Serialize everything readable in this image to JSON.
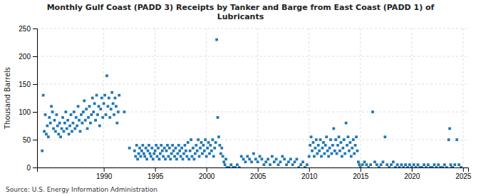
{
  "chart_data": {
    "type": "scatter",
    "title": "Monthly Gulf Coast (PADD 3) Receipts by Tanker and Barge from East Coast (PADD 1) of\nLubricants",
    "ylabel": "Thousand Barrels",
    "annotations": [
      "Source: U.S. Energy Information Administration"
    ],
    "marker": "square",
    "grid": true,
    "xlim": [
      1983.5,
      2025.5
    ],
    "ylim": [
      0,
      250
    ],
    "xticks": [
      1990,
      1995,
      2000,
      2005,
      2010,
      2015,
      2020,
      2025
    ],
    "yticks": [
      0,
      50,
      100,
      150,
      200,
      250
    ],
    "x": [
      1984.0,
      1984.1,
      1984.2,
      1984.3,
      1984.4,
      1984.5,
      1984.6,
      1984.7,
      1984.8,
      1984.9,
      1985.0,
      1985.1,
      1985.2,
      1985.3,
      1985.4,
      1985.5,
      1985.6,
      1985.7,
      1985.8,
      1985.9,
      1986.0,
      1986.1,
      1986.2,
      1986.3,
      1986.4,
      1986.5,
      1986.6,
      1986.7,
      1986.8,
      1986.9,
      1987.0,
      1987.1,
      1987.2,
      1987.3,
      1987.4,
      1987.5,
      1987.6,
      1987.7,
      1987.8,
      1987.9,
      1988.0,
      1988.1,
      1988.2,
      1988.3,
      1988.4,
      1988.5,
      1988.6,
      1988.7,
      1988.8,
      1988.9,
      1989.0,
      1989.1,
      1989.2,
      1989.3,
      1989.4,
      1989.5,
      1989.6,
      1989.7,
      1989.8,
      1989.9,
      1990.0,
      1990.1,
      1990.2,
      1990.3,
      1990.4,
      1990.5,
      1990.6,
      1990.7,
      1990.8,
      1990.9,
      1991.0,
      1991.1,
      1991.2,
      1991.3,
      1991.4,
      1991.5,
      1992.0,
      1992.5,
      1993.0,
      1993.1,
      1993.2,
      1993.3,
      1993.4,
      1993.5,
      1993.6,
      1993.7,
      1993.8,
      1993.9,
      1994.0,
      1994.1,
      1994.2,
      1994.3,
      1994.4,
      1994.5,
      1994.6,
      1994.7,
      1994.8,
      1994.9,
      1995.0,
      1995.1,
      1995.2,
      1995.3,
      1995.4,
      1995.5,
      1995.6,
      1995.7,
      1995.8,
      1995.9,
      1996.0,
      1996.1,
      1996.2,
      1996.3,
      1996.4,
      1996.5,
      1996.6,
      1996.7,
      1996.8,
      1996.9,
      1997.0,
      1997.1,
      1997.2,
      1997.3,
      1997.4,
      1997.5,
      1997.6,
      1997.7,
      1997.8,
      1997.9,
      1998.0,
      1998.1,
      1998.2,
      1998.3,
      1998.4,
      1998.5,
      1998.6,
      1998.7,
      1998.8,
      1998.9,
      1999.0,
      1999.1,
      1999.2,
      1999.3,
      1999.4,
      1999.5,
      1999.6,
      1999.7,
      1999.8,
      1999.9,
      2000.0,
      2000.1,
      2000.2,
      2000.3,
      2000.4,
      2000.5,
      2000.6,
      2000.7,
      2000.8,
      2000.9,
      2001.0,
      2001.1,
      2001.2,
      2001.3,
      2001.4,
      2001.5,
      2001.6,
      2001.7,
      2001.8,
      2001.9,
      2002.0,
      2002.2,
      2002.4,
      2002.6,
      2002.8,
      2003.0,
      2003.2,
      2003.4,
      2003.6,
      2003.8,
      2004.0,
      2004.2,
      2004.4,
      2004.6,
      2004.8,
      2005.0,
      2005.2,
      2005.4,
      2005.6,
      2005.8,
      2006.0,
      2006.2,
      2006.4,
      2006.6,
      2006.8,
      2007.0,
      2007.2,
      2007.4,
      2007.6,
      2007.8,
      2008.0,
      2008.2,
      2008.4,
      2008.6,
      2008.8,
      2009.0,
      2009.2,
      2009.4,
      2009.6,
      2009.8,
      2010.0,
      2010.1,
      2010.2,
      2010.3,
      2010.4,
      2010.5,
      2010.6,
      2010.7,
      2010.8,
      2010.9,
      2011.0,
      2011.1,
      2011.2,
      2011.3,
      2011.4,
      2011.5,
      2011.6,
      2011.7,
      2011.8,
      2011.9,
      2012.0,
      2012.1,
      2012.2,
      2012.3,
      2012.4,
      2012.5,
      2012.6,
      2012.7,
      2012.8,
      2012.9,
      2013.0,
      2013.1,
      2013.2,
      2013.3,
      2013.4,
      2013.5,
      2013.6,
      2013.7,
      2013.8,
      2013.9,
      2014.0,
      2014.1,
      2014.2,
      2014.3,
      2014.4,
      2014.5,
      2014.6,
      2014.7,
      2014.8,
      2014.9,
      2015.0,
      2015.2,
      2015.4,
      2015.6,
      2015.8,
      2016.0,
      2016.2,
      2016.4,
      2016.6,
      2016.8,
      2017.0,
      2017.2,
      2017.4,
      2017.6,
      2017.8,
      2018.0,
      2018.2,
      2018.4,
      2018.6,
      2018.8,
      2019.0,
      2019.2,
      2019.4,
      2019.6,
      2019.8,
      2020.0,
      2020.2,
      2020.4,
      2020.6,
      2020.8,
      2021.0,
      2021.2,
      2021.4,
      2021.6,
      2021.8,
      2022.0,
      2022.2,
      2022.4,
      2022.6,
      2022.8,
      2023.0,
      2023.2,
      2023.4,
      2023.6,
      2023.7,
      2023.8,
      2023.9,
      2024.0,
      2024.2,
      2024.4,
      2024.6,
      2024.8
    ],
    "values": [
      30,
      130,
      65,
      95,
      60,
      75,
      55,
      90,
      80,
      110,
      100,
      70,
      85,
      65,
      95,
      75,
      60,
      80,
      55,
      70,
      90,
      65,
      80,
      100,
      70,
      85,
      60,
      75,
      95,
      65,
      80,
      100,
      70,
      90,
      75,
      110,
      85,
      65,
      95,
      80,
      100,
      120,
      85,
      105,
      70,
      90,
      110,
      80,
      95,
      125,
      100,
      115,
      85,
      130,
      95,
      110,
      75,
      105,
      125,
      90,
      115,
      130,
      95,
      165,
      110,
      125,
      90,
      105,
      135,
      115,
      95,
      125,
      110,
      80,
      100,
      130,
      100,
      35,
      30,
      20,
      40,
      15,
      25,
      35,
      20,
      30,
      40,
      25,
      20,
      35,
      15,
      30,
      40,
      25,
      20,
      35,
      15,
      25,
      30,
      40,
      20,
      35,
      15,
      25,
      40,
      30,
      20,
      35,
      15,
      30,
      40,
      20,
      35,
      15,
      25,
      40,
      30,
      20,
      35,
      15,
      25,
      40,
      30,
      20,
      35,
      15,
      25,
      40,
      30,
      20,
      45,
      15,
      30,
      50,
      20,
      35,
      15,
      25,
      40,
      30,
      50,
      20,
      35,
      45,
      25,
      40,
      30,
      50,
      20,
      35,
      45,
      25,
      40,
      30,
      50,
      20,
      35,
      45,
      230,
      90,
      55,
      40,
      25,
      35,
      20,
      10,
      5,
      15,
      0,
      0,
      5,
      0,
      0,
      5,
      0,
      20,
      15,
      10,
      20,
      15,
      10,
      25,
      15,
      10,
      20,
      15,
      5,
      10,
      15,
      5,
      20,
      10,
      15,
      5,
      10,
      20,
      15,
      5,
      10,
      15,
      5,
      10,
      15,
      0,
      5,
      10,
      0,
      5,
      20,
      40,
      55,
      30,
      45,
      20,
      35,
      50,
      25,
      40,
      30,
      50,
      20,
      35,
      45,
      25,
      40,
      55,
      30,
      20,
      35,
      50,
      25,
      40,
      70,
      30,
      50,
      25,
      40,
      55,
      30,
      45,
      20,
      35,
      50,
      25,
      80,
      40,
      55,
      30,
      45,
      20,
      35,
      50,
      25,
      40,
      55,
      30,
      10,
      5,
      0,
      5,
      10,
      5,
      0,
      5,
      100,
      10,
      5,
      0,
      5,
      10,
      55,
      5,
      0,
      5,
      10,
      0,
      5,
      0,
      5,
      0,
      5,
      0,
      5,
      0,
      5,
      0,
      5,
      0,
      0,
      5,
      0,
      5,
      0,
      0,
      5,
      0,
      5,
      0,
      0,
      5,
      0,
      50,
      70,
      5,
      0,
      0,
      5,
      50,
      5,
      0
    ]
  }
}
